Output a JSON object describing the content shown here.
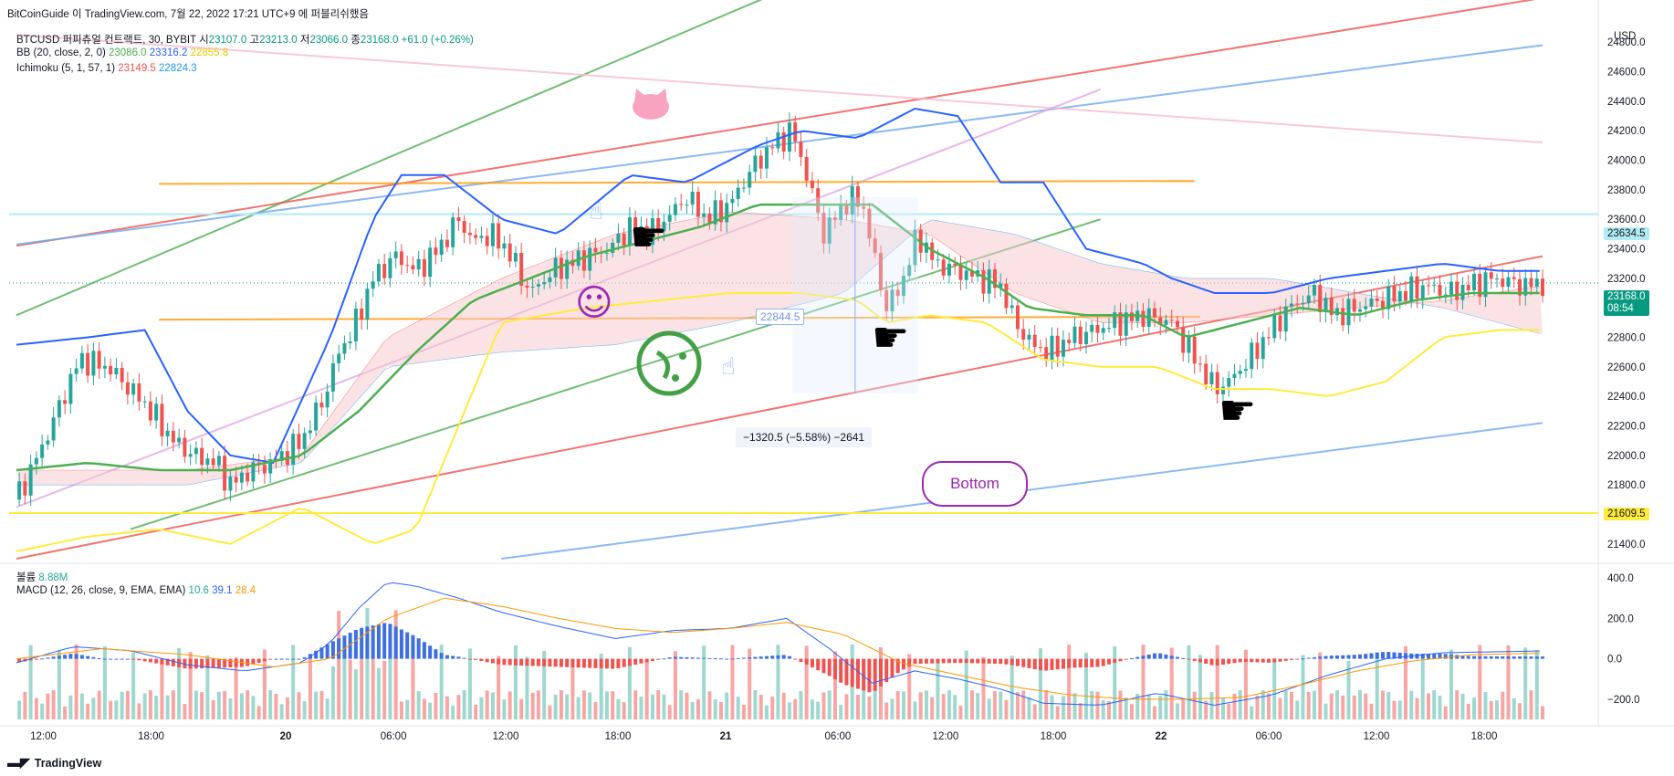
{
  "header": {
    "publisher": "BitCoinGuide 이 TradingView.com, 7월 22, 2022 17:21 UTC+9 에 퍼블리쉬했음",
    "symbol_line": "BTCUSD 퍼피츄얼 컨트랙트, 30, BYBIT",
    "o_label": "시",
    "o_value": "23107.0",
    "h_label": "고",
    "h_value": "23213.0",
    "l_label": "저",
    "l_value": "23066.0",
    "c_label": "종",
    "c_value": "23168.0",
    "change": "+61.0 (+0.26%)",
    "bb_label": "BB (20, close, 2, 0)",
    "bb_basis": "23086.0",
    "bb_upper": "23316.2",
    "bb_lower": "22855.8",
    "ichi_label": "Ichimoku (5, 1, 57, 1)",
    "ichi_a": "23149.5",
    "ichi_b": "22824.3"
  },
  "colors": {
    "up": "#26a69a",
    "down": "#ef5350",
    "bb_upper": "#2962ff",
    "bb_basis": "#4caf50",
    "bb_lower": "#ffeb3b",
    "ichi_a": "#ef5350",
    "ichi_b": "#2196f3",
    "macd": "#2962ff",
    "signal": "#ff9800"
  },
  "price_axis": {
    "currency": "USD",
    "ticks": [
      "24800.0",
      "24600.0",
      "24400.0",
      "24200.0",
      "24000.0",
      "23800.0",
      "23600.0",
      "23400.0",
      "23200.0",
      "23000.0",
      "22800.0",
      "22600.0",
      "22400.0",
      "22200.0",
      "22000.0",
      "21800.0",
      "21600.0",
      "21400.0"
    ],
    "last_price": "23168.0",
    "countdown": "08:54",
    "level_high": "23634.5",
    "level_low": "21609.5"
  },
  "time_axis": {
    "ticks": [
      "12:00",
      "18:00",
      "20",
      "06:00",
      "12:00",
      "18:00",
      "21",
      "06:00",
      "12:00",
      "18:00",
      "22",
      "06:00",
      "12:00",
      "18:00"
    ]
  },
  "annotations": {
    "measure": "−1320.5 (−5.58%) −2641",
    "price_tag": "22844.5",
    "bottom_label": "Bottom"
  },
  "volume_legend": {
    "label": "볼륨",
    "value": "8.88M"
  },
  "macd_legend": {
    "label": "MACD (12, 26, close, 9, EMA, EMA)",
    "hist": "10.6",
    "macd": "39.1",
    "signal": "28.4"
  },
  "macd_axis": {
    "ticks": [
      "400.0",
      "200.0",
      "0.0",
      "−200.0"
    ]
  },
  "footer": {
    "brand": "TradingView"
  },
  "chart_data": {
    "type": "candlestick",
    "title": "BTCUSD 퍼피츄얼 컨트랙트, 30, BYBIT",
    "xlabel": "",
    "ylabel": "USD",
    "ylim": [
      21300,
      24950
    ],
    "close_path": [
      [
        0,
        21700
      ],
      [
        10,
        22100
      ],
      [
        22,
        22650
      ],
      [
        32,
        22600
      ],
      [
        45,
        22350
      ],
      [
        55,
        22100
      ],
      [
        62,
        22000
      ],
      [
        70,
        21950
      ],
      [
        75,
        21800
      ],
      [
        82,
        21900
      ],
      [
        90,
        21950
      ],
      [
        100,
        22100
      ],
      [
        108,
        22400
      ],
      [
        113,
        22700
      ],
      [
        118,
        22850
      ],
      [
        125,
        23200
      ],
      [
        133,
        23350
      ],
      [
        140,
        23250
      ],
      [
        148,
        23400
      ],
      [
        155,
        23600
      ],
      [
        160,
        23450
      ],
      [
        166,
        23500
      ],
      [
        172,
        23400
      ],
      [
        180,
        23100
      ],
      [
        188,
        23250
      ],
      [
        194,
        23300
      ],
      [
        200,
        23350
      ],
      [
        208,
        23400
      ],
      [
        215,
        23550
      ],
      [
        222,
        23500
      ],
      [
        230,
        23650
      ],
      [
        235,
        23750
      ],
      [
        242,
        23600
      ],
      [
        250,
        23700
      ],
      [
        258,
        23950
      ],
      [
        265,
        24100
      ],
      [
        272,
        24200
      ],
      [
        277,
        23900
      ],
      [
        283,
        23500
      ],
      [
        290,
        23700
      ],
      [
        296,
        23750
      ],
      [
        300,
        23400
      ],
      [
        305,
        23000
      ],
      [
        310,
        23150
      ],
      [
        316,
        23500
      ],
      [
        322,
        23300
      ],
      [
        330,
        23250
      ],
      [
        338,
        23200
      ],
      [
        345,
        23150
      ],
      [
        350,
        22900
      ],
      [
        356,
        22750
      ],
      [
        362,
        22700
      ],
      [
        370,
        22800
      ],
      [
        378,
        22850
      ],
      [
        386,
        22900
      ],
      [
        395,
        22950
      ],
      [
        405,
        22900
      ],
      [
        415,
        22600
      ],
      [
        420,
        22450
      ],
      [
        425,
        22500
      ],
      [
        432,
        22650
      ],
      [
        438,
        22800
      ],
      [
        446,
        23000
      ],
      [
        455,
        23100
      ],
      [
        462,
        22950
      ],
      [
        470,
        23000
      ],
      [
        478,
        23050
      ],
      [
        486,
        23100
      ],
      [
        494,
        23150
      ],
      [
        502,
        23100
      ],
      [
        510,
        23150
      ],
      [
        517,
        23200
      ],
      [
        522,
        23180
      ],
      [
        528,
        23150
      ],
      [
        535,
        23168
      ]
    ],
    "series": [
      {
        "name": "BB upper (20,2)",
        "values": [
          [
            0,
            22750
          ],
          [
            25,
            22800
          ],
          [
            45,
            22850
          ],
          [
            60,
            22300
          ],
          [
            75,
            22000
          ],
          [
            90,
            21950
          ],
          [
            110,
            22800
          ],
          [
            125,
            23600
          ],
          [
            135,
            23900
          ],
          [
            150,
            23900
          ],
          [
            170,
            23600
          ],
          [
            190,
            23500
          ],
          [
            215,
            23900
          ],
          [
            235,
            23850
          ],
          [
            260,
            24100
          ],
          [
            275,
            24200
          ],
          [
            295,
            24150
          ],
          [
            315,
            24350
          ],
          [
            330,
            24300
          ],
          [
            345,
            23850
          ],
          [
            360,
            23850
          ],
          [
            375,
            23400
          ],
          [
            395,
            23300
          ],
          [
            405,
            23200
          ],
          [
            420,
            23100
          ],
          [
            440,
            23100
          ],
          [
            460,
            23200
          ],
          [
            480,
            23250
          ],
          [
            500,
            23300
          ],
          [
            520,
            23250
          ],
          [
            535,
            23250
          ]
        ]
      },
      {
        "name": "BB basis (20)",
        "values": [
          [
            0,
            21900
          ],
          [
            25,
            21950
          ],
          [
            50,
            21900
          ],
          [
            75,
            21900
          ],
          [
            100,
            22000
          ],
          [
            120,
            22300
          ],
          [
            140,
            22700
          ],
          [
            160,
            23050
          ],
          [
            180,
            23200
          ],
          [
            200,
            23350
          ],
          [
            220,
            23450
          ],
          [
            240,
            23550
          ],
          [
            260,
            23700
          ],
          [
            280,
            23700
          ],
          [
            300,
            23700
          ],
          [
            320,
            23400
          ],
          [
            340,
            23200
          ],
          [
            355,
            23000
          ],
          [
            375,
            22950
          ],
          [
            395,
            22950
          ],
          [
            410,
            22800
          ],
          [
            430,
            22900
          ],
          [
            450,
            23000
          ],
          [
            470,
            22950
          ],
          [
            490,
            23050
          ],
          [
            510,
            23100
          ],
          [
            535,
            23100
          ]
        ]
      },
      {
        "name": "BB lower (20,2)",
        "values": [
          [
            0,
            21350
          ],
          [
            25,
            21450
          ],
          [
            50,
            21500
          ],
          [
            75,
            21400
          ],
          [
            100,
            21650
          ],
          [
            115,
            21500
          ],
          [
            125,
            21400
          ],
          [
            140,
            21500
          ],
          [
            155,
            22200
          ],
          [
            170,
            22900
          ],
          [
            185,
            22950
          ],
          [
            200,
            23000
          ],
          [
            225,
            23050
          ],
          [
            250,
            23100
          ],
          [
            275,
            23100
          ],
          [
            295,
            23050
          ],
          [
            305,
            22900
          ],
          [
            320,
            22950
          ],
          [
            340,
            22900
          ],
          [
            360,
            22650
          ],
          [
            380,
            22600
          ],
          [
            400,
            22600
          ],
          [
            420,
            22450
          ],
          [
            440,
            22450
          ],
          [
            460,
            22400
          ],
          [
            480,
            22500
          ],
          [
            500,
            22800
          ],
          [
            520,
            22850
          ],
          [
            535,
            22850
          ]
        ]
      },
      {
        "name": "Ichimoku lead A",
        "values": [
          [
            0,
            21900
          ],
          [
            60,
            21900
          ],
          [
            100,
            22000
          ],
          [
            130,
            22800
          ],
          [
            170,
            23200
          ],
          [
            210,
            23500
          ],
          [
            250,
            23650
          ],
          [
            290,
            23600
          ],
          [
            320,
            23500
          ],
          [
            350,
            23100
          ],
          [
            380,
            22900
          ],
          [
            410,
            22900
          ],
          [
            440,
            22950
          ],
          [
            470,
            23000
          ],
          [
            500,
            23050
          ],
          [
            535,
            23150
          ]
        ]
      },
      {
        "name": "Ichimoku lead B",
        "values": [
          [
            0,
            21800
          ],
          [
            60,
            21800
          ],
          [
            100,
            21950
          ],
          [
            130,
            22600
          ],
          [
            170,
            22700
          ],
          [
            210,
            22750
          ],
          [
            250,
            22900
          ],
          [
            290,
            23100
          ],
          [
            320,
            23600
          ],
          [
            350,
            23500
          ],
          [
            380,
            23300
          ],
          [
            410,
            23200
          ],
          [
            440,
            23200
          ],
          [
            470,
            23100
          ],
          [
            500,
            23000
          ],
          [
            535,
            22820
          ]
        ]
      },
      {
        "name": "MACD",
        "values": [
          [
            0,
            -20
          ],
          [
            20,
            60
          ],
          [
            40,
            40
          ],
          [
            60,
            -30
          ],
          [
            80,
            -60
          ],
          [
            100,
            -20
          ],
          [
            110,
            80
          ],
          [
            120,
            250
          ],
          [
            130,
            380
          ],
          [
            140,
            360
          ],
          [
            155,
            300
          ],
          [
            170,
            230
          ],
          [
            190,
            160
          ],
          [
            210,
            100
          ],
          [
            230,
            140
          ],
          [
            250,
            150
          ],
          [
            270,
            200
          ],
          [
            285,
            50
          ],
          [
            300,
            -120
          ],
          [
            315,
            -60
          ],
          [
            330,
            -100
          ],
          [
            345,
            -150
          ],
          [
            360,
            -220
          ],
          [
            380,
            -230
          ],
          [
            400,
            -170
          ],
          [
            420,
            -230
          ],
          [
            440,
            -180
          ],
          [
            460,
            -80
          ],
          [
            480,
            0
          ],
          [
            500,
            30
          ],
          [
            520,
            35
          ],
          [
            535,
            39
          ]
        ]
      },
      {
        "name": "Signal",
        "values": [
          [
            0,
            0
          ],
          [
            30,
            50
          ],
          [
            60,
            20
          ],
          [
            90,
            -40
          ],
          [
            110,
            0
          ],
          [
            130,
            200
          ],
          [
            150,
            300
          ],
          [
            170,
            260
          ],
          [
            190,
            200
          ],
          [
            210,
            150
          ],
          [
            230,
            130
          ],
          [
            250,
            150
          ],
          [
            270,
            180
          ],
          [
            290,
            120
          ],
          [
            310,
            -20
          ],
          [
            330,
            -80
          ],
          [
            350,
            -140
          ],
          [
            370,
            -180
          ],
          [
            390,
            -200
          ],
          [
            410,
            -200
          ],
          [
            430,
            -190
          ],
          [
            450,
            -130
          ],
          [
            470,
            -60
          ],
          [
            490,
            -10
          ],
          [
            510,
            20
          ],
          [
            535,
            28
          ]
        ]
      }
    ],
    "macd_ylim": [
      -300,
      450
    ],
    "volume_max": 10
  }
}
